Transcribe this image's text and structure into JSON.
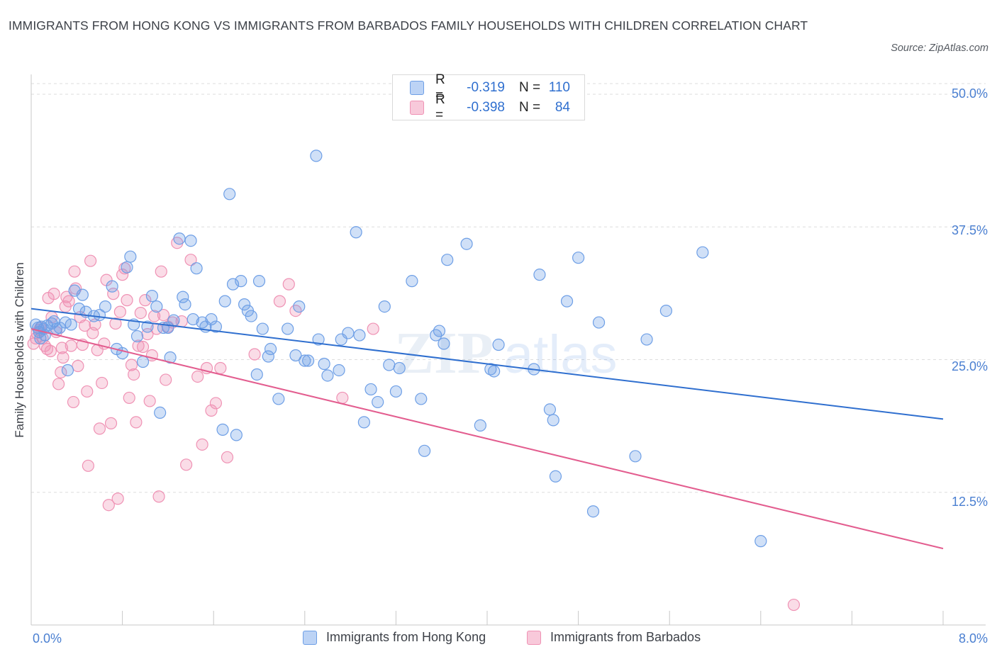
{
  "header": {
    "title": "IMMIGRANTS FROM HONG KONG VS IMMIGRANTS FROM BARBADOS FAMILY HOUSEHOLDS WITH CHILDREN CORRELATION CHART",
    "source": "Source: ZipAtlas.com"
  },
  "watermark": {
    "zip": "ZIP",
    "atlas": "atlas"
  },
  "legend": {
    "hk": {
      "r_label": "R =",
      "r_value": "-0.319",
      "n_label": "N =",
      "n_value": "110",
      "color": "#6e9fe6"
    },
    "bb": {
      "r_label": "R =",
      "r_value": "-0.398",
      "n_label": "N =",
      "n_value": "84",
      "color": "#ef92b4"
    }
  },
  "bottom_legend": {
    "hk_label": "Immigrants from Hong Kong",
    "bb_label": "Immigrants from Barbados"
  },
  "chart_data": {
    "type": "scatter",
    "title": "IMMIGRANTS FROM HONG KONG VS IMMIGRANTS FROM BARBADOS FAMILY HOUSEHOLDS WITH CHILDREN CORRELATION CHART",
    "ylabel": "Family Households with Children",
    "xlim": [
      0,
      8
    ],
    "ylim": [
      0,
      52
    ],
    "x_tick_labels": [
      "0.0%",
      "8.0%"
    ],
    "y_tick_labels": [
      "50.0%",
      "37.5%",
      "25.0%",
      "12.5%"
    ],
    "y_ticks": [
      50,
      37.5,
      25,
      12.5
    ],
    "grid": true,
    "series": [
      {
        "name": "Immigrants from Hong Kong",
        "color": "#6e9fe6",
        "trend": {
          "x": [
            0,
            8
          ],
          "y": [
            29.8,
            19.4
          ]
        },
        "points": [
          [
            0.04,
            28.3
          ],
          [
            0.06,
            28.0
          ],
          [
            0.07,
            27.6
          ],
          [
            0.08,
            27.0
          ],
          [
            0.09,
            28.1
          ],
          [
            0.11,
            27.9
          ],
          [
            0.12,
            27.3
          ],
          [
            0.14,
            28.2
          ],
          [
            0.18,
            28.4
          ],
          [
            0.2,
            28.6
          ],
          [
            0.22,
            27.9
          ],
          [
            0.25,
            28.0
          ],
          [
            0.3,
            28.5
          ],
          [
            0.32,
            24.0
          ],
          [
            0.35,
            28.3
          ],
          [
            0.38,
            31.5
          ],
          [
            0.42,
            29.8
          ],
          [
            0.45,
            31.1
          ],
          [
            0.48,
            29.5
          ],
          [
            0.55,
            29.1
          ],
          [
            0.6,
            29.2
          ],
          [
            0.65,
            30.0
          ],
          [
            0.71,
            31.9
          ],
          [
            0.75,
            26.0
          ],
          [
            0.8,
            25.6
          ],
          [
            0.84,
            33.7
          ],
          [
            0.87,
            34.7
          ],
          [
            0.9,
            28.3
          ],
          [
            0.93,
            27.2
          ],
          [
            0.98,
            24.8
          ],
          [
            1.02,
            28.1
          ],
          [
            1.06,
            31.0
          ],
          [
            1.1,
            30.0
          ],
          [
            1.13,
            20.0
          ],
          [
            1.16,
            28.0
          ],
          [
            1.2,
            28.0
          ],
          [
            1.25,
            28.7
          ],
          [
            1.3,
            36.4
          ],
          [
            1.33,
            30.9
          ],
          [
            1.35,
            30.2
          ],
          [
            1.4,
            36.2
          ],
          [
            1.42,
            28.8
          ],
          [
            1.45,
            33.6
          ],
          [
            1.5,
            28.5
          ],
          [
            1.53,
            28.1
          ],
          [
            1.58,
            28.8
          ],
          [
            1.62,
            28.1
          ],
          [
            1.68,
            18.4
          ],
          [
            1.7,
            30.5
          ],
          [
            1.74,
            40.6
          ],
          [
            1.77,
            32.1
          ],
          [
            1.8,
            17.9
          ],
          [
            1.84,
            32.4
          ],
          [
            1.87,
            30.2
          ],
          [
            1.9,
            29.6
          ],
          [
            1.93,
            29.1
          ],
          [
            1.98,
            23.6
          ],
          [
            2.0,
            32.4
          ],
          [
            2.03,
            27.9
          ],
          [
            2.08,
            25.3
          ],
          [
            2.1,
            26.0
          ],
          [
            2.17,
            21.3
          ],
          [
            2.25,
            27.9
          ],
          [
            2.32,
            25.4
          ],
          [
            2.35,
            30.0
          ],
          [
            2.4,
            24.9
          ],
          [
            2.43,
            24.9
          ],
          [
            2.5,
            44.2
          ],
          [
            2.52,
            26.9
          ],
          [
            2.57,
            24.6
          ],
          [
            2.6,
            23.5
          ],
          [
            2.7,
            24.0
          ],
          [
            2.72,
            26.9
          ],
          [
            2.78,
            27.5
          ],
          [
            2.85,
            37.0
          ],
          [
            2.88,
            27.3
          ],
          [
            2.92,
            19.1
          ],
          [
            2.98,
            22.2
          ],
          [
            3.04,
            21.0
          ],
          [
            3.1,
            30.0
          ],
          [
            3.14,
            24.5
          ],
          [
            3.2,
            22.0
          ],
          [
            3.23,
            24.2
          ],
          [
            3.34,
            32.4
          ],
          [
            3.42,
            21.3
          ],
          [
            3.45,
            16.4
          ],
          [
            3.55,
            27.3
          ],
          [
            3.58,
            27.7
          ],
          [
            3.62,
            26.5
          ],
          [
            3.65,
            34.4
          ],
          [
            3.82,
            35.9
          ],
          [
            3.94,
            18.8
          ],
          [
            4.03,
            24.1
          ],
          [
            4.06,
            23.9
          ],
          [
            4.1,
            26.4
          ],
          [
            4.46,
            33.0
          ],
          [
            4.55,
            20.3
          ],
          [
            4.58,
            19.3
          ],
          [
            4.6,
            14.0
          ],
          [
            4.7,
            30.5
          ],
          [
            4.8,
            34.6
          ],
          [
            4.93,
            10.7
          ],
          [
            4.98,
            28.5
          ],
          [
            5.3,
            15.9
          ],
          [
            5.57,
            29.6
          ],
          [
            5.89,
            35.1
          ],
          [
            6.4,
            7.9
          ],
          [
            4.41,
            24.1
          ],
          [
            5.4,
            26.9
          ],
          [
            1.22,
            25.2
          ]
        ]
      },
      {
        "name": "Immigrants from Barbados",
        "color": "#ef92b4",
        "trend": {
          "x": [
            0,
            8
          ],
          "y": [
            27.9,
            7.2
          ]
        },
        "points": [
          [
            0.02,
            26.5
          ],
          [
            0.04,
            27.0
          ],
          [
            0.05,
            27.5
          ],
          [
            0.07,
            27.8
          ],
          [
            0.08,
            28.0
          ],
          [
            0.1,
            27.0
          ],
          [
            0.12,
            26.3
          ],
          [
            0.14,
            26.0
          ],
          [
            0.15,
            30.8
          ],
          [
            0.17,
            25.8
          ],
          [
            0.18,
            29.0
          ],
          [
            0.2,
            31.2
          ],
          [
            0.22,
            27.6
          ],
          [
            0.24,
            22.7
          ],
          [
            0.26,
            23.8
          ],
          [
            0.27,
            26.1
          ],
          [
            0.28,
            25.2
          ],
          [
            0.3,
            30.0
          ],
          [
            0.31,
            30.9
          ],
          [
            0.33,
            30.5
          ],
          [
            0.35,
            26.3
          ],
          [
            0.37,
            21.0
          ],
          [
            0.38,
            33.3
          ],
          [
            0.39,
            31.7
          ],
          [
            0.41,
            24.4
          ],
          [
            0.43,
            29.0
          ],
          [
            0.45,
            26.4
          ],
          [
            0.47,
            28.2
          ],
          [
            0.49,
            22.0
          ],
          [
            0.5,
            15.0
          ],
          [
            0.52,
            34.3
          ],
          [
            0.54,
            27.5
          ],
          [
            0.56,
            28.3
          ],
          [
            0.58,
            25.9
          ],
          [
            0.6,
            18.5
          ],
          [
            0.62,
            22.8
          ],
          [
            0.64,
            26.5
          ],
          [
            0.66,
            32.5
          ],
          [
            0.68,
            11.3
          ],
          [
            0.7,
            19.0
          ],
          [
            0.72,
            31.2
          ],
          [
            0.74,
            28.4
          ],
          [
            0.76,
            11.9
          ],
          [
            0.78,
            29.5
          ],
          [
            0.8,
            33.0
          ],
          [
            0.82,
            33.6
          ],
          [
            0.84,
            30.6
          ],
          [
            0.86,
            21.4
          ],
          [
            0.88,
            24.5
          ],
          [
            0.9,
            23.6
          ],
          [
            0.92,
            19.1
          ],
          [
            0.94,
            26.3
          ],
          [
            0.96,
            29.4
          ],
          [
            0.98,
            26.2
          ],
          [
            1.0,
            30.6
          ],
          [
            1.02,
            27.4
          ],
          [
            1.04,
            21.1
          ],
          [
            1.06,
            25.4
          ],
          [
            1.08,
            29.1
          ],
          [
            1.1,
            27.9
          ],
          [
            1.12,
            12.1
          ],
          [
            1.14,
            33.3
          ],
          [
            1.16,
            29.2
          ],
          [
            1.18,
            23.1
          ],
          [
            1.2,
            28.1
          ],
          [
            1.24,
            28.5
          ],
          [
            1.28,
            36.0
          ],
          [
            1.32,
            28.6
          ],
          [
            1.36,
            15.1
          ],
          [
            1.4,
            34.4
          ],
          [
            1.46,
            23.4
          ],
          [
            1.5,
            17.0
          ],
          [
            1.54,
            24.2
          ],
          [
            1.58,
            20.2
          ],
          [
            1.62,
            20.9
          ],
          [
            1.66,
            24.2
          ],
          [
            1.72,
            15.8
          ],
          [
            1.96,
            25.5
          ],
          [
            2.18,
            30.5
          ],
          [
            2.26,
            32.1
          ],
          [
            2.32,
            29.6
          ],
          [
            2.73,
            21.4
          ],
          [
            3.0,
            27.9
          ],
          [
            6.69,
            1.9
          ]
        ]
      }
    ]
  }
}
